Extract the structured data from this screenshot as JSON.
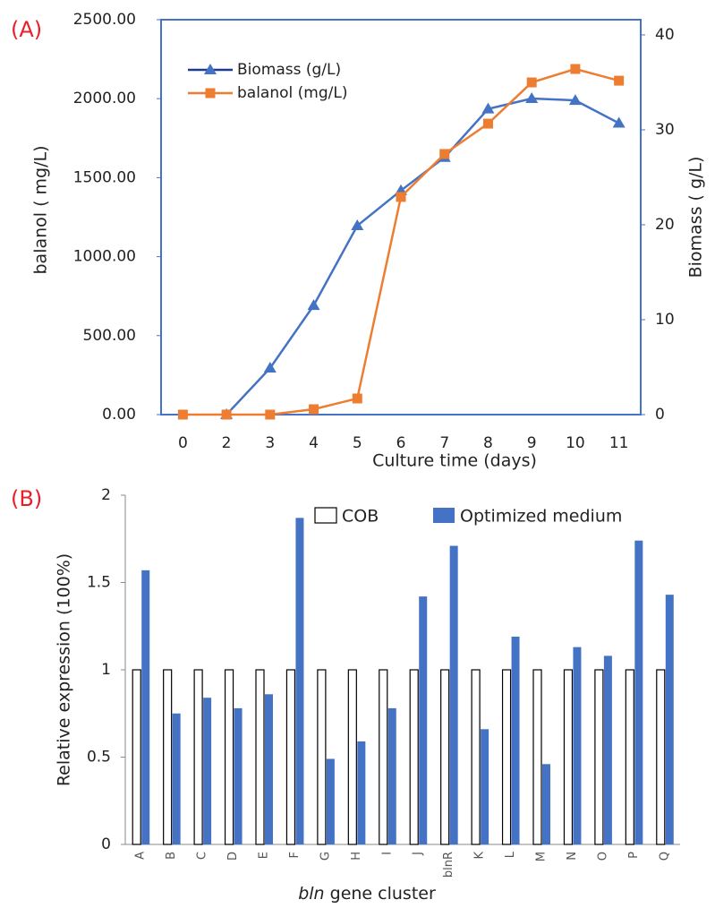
{
  "chart_data": [
    {
      "type": "line",
      "panel_label": "(A)",
      "x_label": "Culture time (days)",
      "y_label": "balanol ( mg/L)",
      "y2_label": "Biomass ( g/L)",
      "categories": [
        "0",
        "2",
        "3",
        "4",
        "5",
        "6",
        "7",
        "8",
        "9",
        "10",
        "11"
      ],
      "series": [
        {
          "name": "Biomass (g/L)",
          "color": "#4472c4",
          "legend_color": "#1f3a93",
          "marker": "triangle",
          "axis": "y2",
          "values": [
            null,
            0,
            4.9,
            11.5,
            19.9,
            23.6,
            27.1,
            32.2,
            33.3,
            33.1,
            30.7
          ]
        },
        {
          "name": "balanol (mg/L)",
          "color": "#ed7d31",
          "marker": "square",
          "values": [
            0,
            0,
            0,
            34,
            102,
            1378,
            1650,
            1842,
            2103,
            2188,
            2114
          ]
        }
      ],
      "ylim": [
        0,
        2500
      ],
      "yticks": [
        {
          "value": 0,
          "label": "0.00"
        },
        {
          "value": 500,
          "label": "500.00"
        },
        {
          "value": 1000,
          "label": "1000.00"
        },
        {
          "value": 1500,
          "label": "1500.00"
        },
        {
          "value": 2000,
          "label": "2000.00"
        },
        {
          "value": 2500,
          "label": "2500.00"
        }
      ],
      "y2lim": [
        0,
        41.6
      ],
      "y2ticks": [
        0,
        10,
        20,
        30,
        40
      ],
      "legend": "upper left",
      "frame_color": "#4472c4"
    },
    {
      "type": "bar",
      "panel_label": "(B)",
      "x_label_prefix": "bln",
      "x_label": "gene cluster",
      "y_label": "Relative expression (100%)",
      "categories": [
        "A",
        "B",
        "C",
        "D",
        "E",
        "F",
        "G",
        "H",
        "I",
        "J",
        "blnR",
        "K",
        "L",
        "M",
        "N",
        "O",
        "P",
        "Q"
      ],
      "series": [
        {
          "name": "COB",
          "color": "#ffffff",
          "edge_color": "#000000",
          "values": [
            1,
            1,
            1,
            1,
            1,
            1,
            1,
            1,
            1,
            1,
            1,
            1,
            1,
            1,
            1,
            1,
            1,
            1
          ]
        },
        {
          "name": "Optimized medium",
          "color": "#4472c4",
          "values": [
            1.57,
            0.75,
            0.84,
            0.78,
            0.86,
            1.87,
            0.49,
            0.59,
            0.78,
            1.42,
            1.71,
            0.66,
            1.19,
            0.46,
            1.13,
            1.08,
            1.74,
            1.43
          ]
        }
      ],
      "ylim": [
        0,
        2
      ],
      "yticks": [
        0,
        0.5,
        1,
        1.5,
        2
      ],
      "legend": "upper center"
    }
  ]
}
